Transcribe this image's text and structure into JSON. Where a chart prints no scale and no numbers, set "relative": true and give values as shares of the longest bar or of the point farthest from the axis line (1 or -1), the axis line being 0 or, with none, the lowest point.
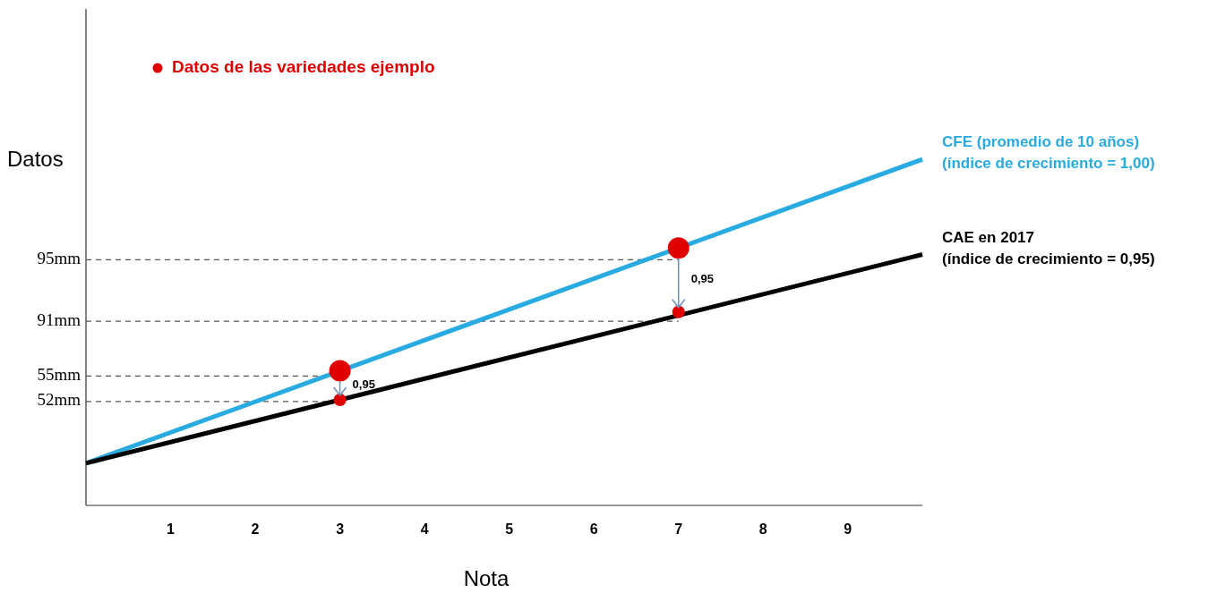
{
  "chart_data": {
    "type": "line",
    "xlabel": "Nota",
    "ylabel": "Datos",
    "xlim": [
      0,
      9.88
    ],
    "xticks": [
      1,
      2,
      3,
      4,
      5,
      6,
      7,
      8,
      9
    ],
    "relative": true,
    "legend": "top left",
    "series": [
      {
        "name": "CFE (promedio de 10 años)\n(índice de crecimiento  = 1,00)",
        "color": "#29abe2",
        "x": [
          0,
          9.88
        ],
        "values": [
          0.122,
          1
        ]
      },
      {
        "name": "CAE en 2017\n(índice de crecimiento  = 0,95)",
        "color": "#000000",
        "x": [
          0,
          9.88
        ],
        "values": [
          0.122,
          0.725
        ]
      },
      {
        "type": "bubble",
        "name": "Datos de las variedades ejemplo",
        "color": "#e00000",
        "marker": "circle",
        "x": [
          3,
          3,
          7,
          7
        ],
        "values": [
          0.389,
          0.305,
          0.744,
          0.559
        ],
        "sizes": [
          1,
          0.35,
          1,
          0.35
        ]
      }
    ],
    "ref_lines": [
      {
        "axis": "y",
        "value": 0.71,
        "label": "95mm",
        "color": "#555555",
        "line_style": "dashed"
      },
      {
        "axis": "y",
        "value": 0.532,
        "label": "91mm",
        "color": "#555555",
        "line_style": "dashed"
      },
      {
        "axis": "y",
        "value": 0.374,
        "label": "55mm",
        "color": "#555555",
        "line_style": "dashed"
      },
      {
        "axis": "y",
        "value": 0.3,
        "label": "52mm",
        "color": "#555555",
        "line_style": "dashed"
      }
    ],
    "annotations": [
      {
        "text": "0,95",
        "x": 3,
        "y": 0.305
      },
      {
        "text": "0,95",
        "x": 7,
        "y": 0.559
      }
    ]
  }
}
